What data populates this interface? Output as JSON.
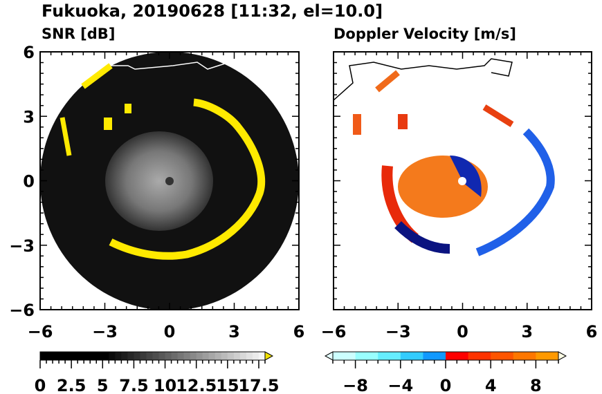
{
  "title": "Fukuoka, 20190628 [11:32, el=10.0]",
  "chart_data": [
    {
      "type": "heatmap",
      "title": "SNR [dB]",
      "xlim": [
        -6,
        6
      ],
      "ylim": [
        -6,
        6
      ],
      "xticks": [
        -6,
        -3,
        0,
        3,
        6
      ],
      "yticks": [
        -6,
        -3,
        0,
        3,
        6
      ],
      "xtick_labels": [
        "−6",
        "−3",
        "0",
        "3",
        "6"
      ],
      "ytick_labels": [
        "−6",
        "−3",
        "0",
        "3",
        "6"
      ],
      "colorbar": {
        "range": [
          0,
          18
        ],
        "labels": [
          "0",
          "2.5",
          "5",
          "7.5",
          "10",
          "12.5",
          "15",
          "17.5"
        ],
        "label_values": [
          0,
          2.5,
          5,
          7.5,
          10,
          12.5,
          15,
          17.5
        ],
        "colors": [
          "#000000",
          "#ffffff"
        ],
        "over_color": "#f0e000",
        "extend": "max"
      },
      "description_ring_radius_km": 3.8
    },
    {
      "type": "heatmap",
      "title": "Doppler Velocity [m/s]",
      "xlim": [
        -6,
        6
      ],
      "ylim": [
        -6,
        6
      ],
      "xticks": [
        -6,
        -3,
        0,
        3,
        6
      ],
      "yticks": [
        -6,
        -3,
        0,
        3,
        6
      ],
      "xtick_labels": [
        "−6",
        "−3",
        "0",
        "3",
        "6"
      ],
      "colorbar": {
        "range": [
          -10,
          10
        ],
        "labels": [
          "−8",
          "−4",
          "0",
          "4",
          "8"
        ],
        "label_values": [
          -8,
          -4,
          0,
          4,
          8
        ],
        "extend": "both"
      }
    }
  ]
}
